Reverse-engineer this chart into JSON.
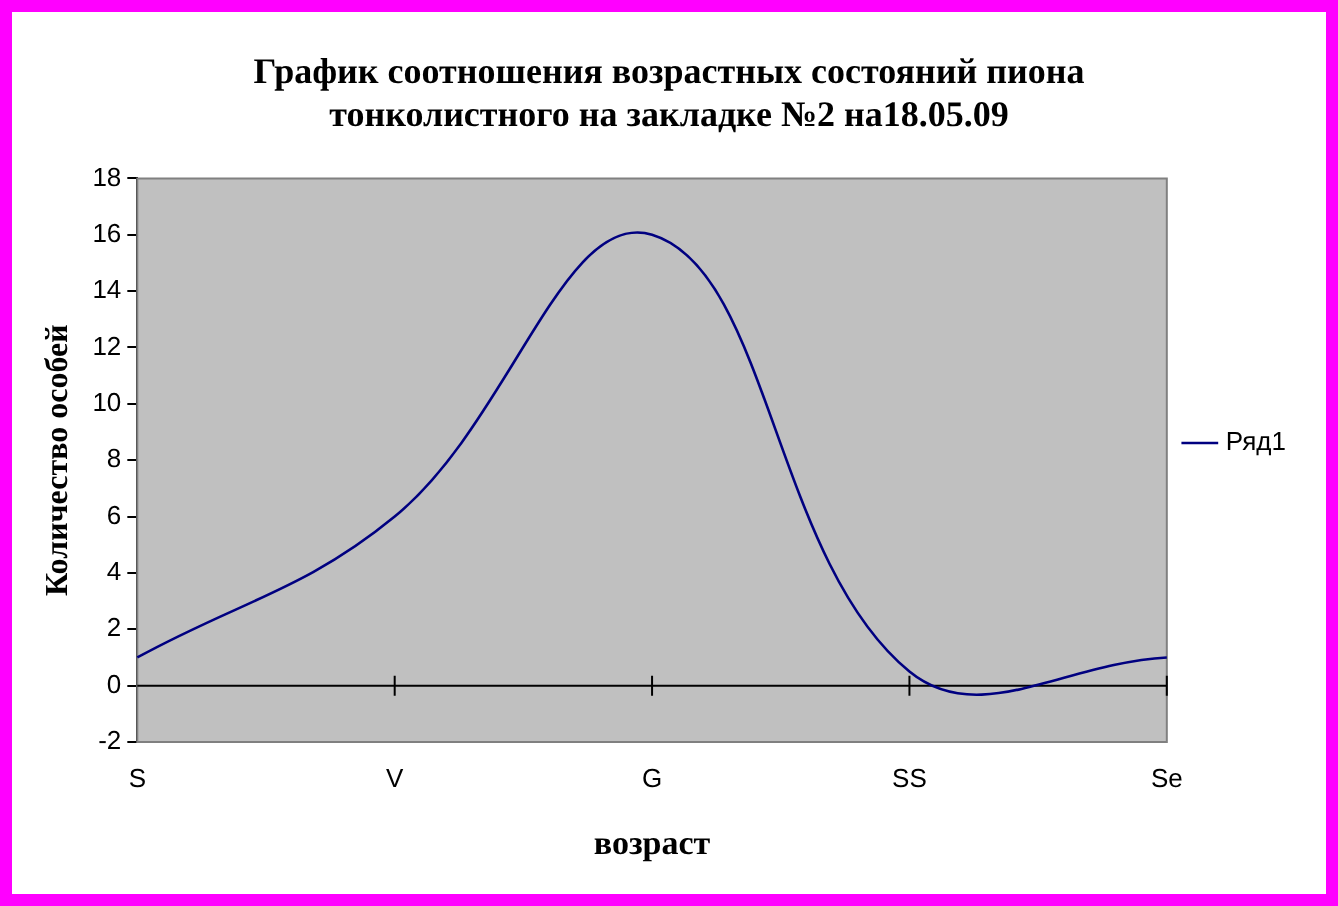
{
  "chart_data": {
    "type": "line",
    "title": [
      "График соотношения возрастных состояний пиона",
      "тонколистного на закладке №2 на18.05.09"
    ],
    "xlabel": "возраст",
    "ylabel": "Количество особей",
    "categories": [
      "S",
      "V",
      "G",
      "SS",
      "Se"
    ],
    "series": [
      {
        "name": "Ряд1",
        "color": "#000080",
        "values": [
          1,
          6,
          16,
          0.5,
          1
        ]
      }
    ],
    "ylim": [
      -2,
      18
    ],
    "yticks": [
      -2,
      0,
      2,
      4,
      6,
      8,
      10,
      12,
      14,
      16,
      18
    ],
    "legend": "right",
    "marker": "none"
  }
}
